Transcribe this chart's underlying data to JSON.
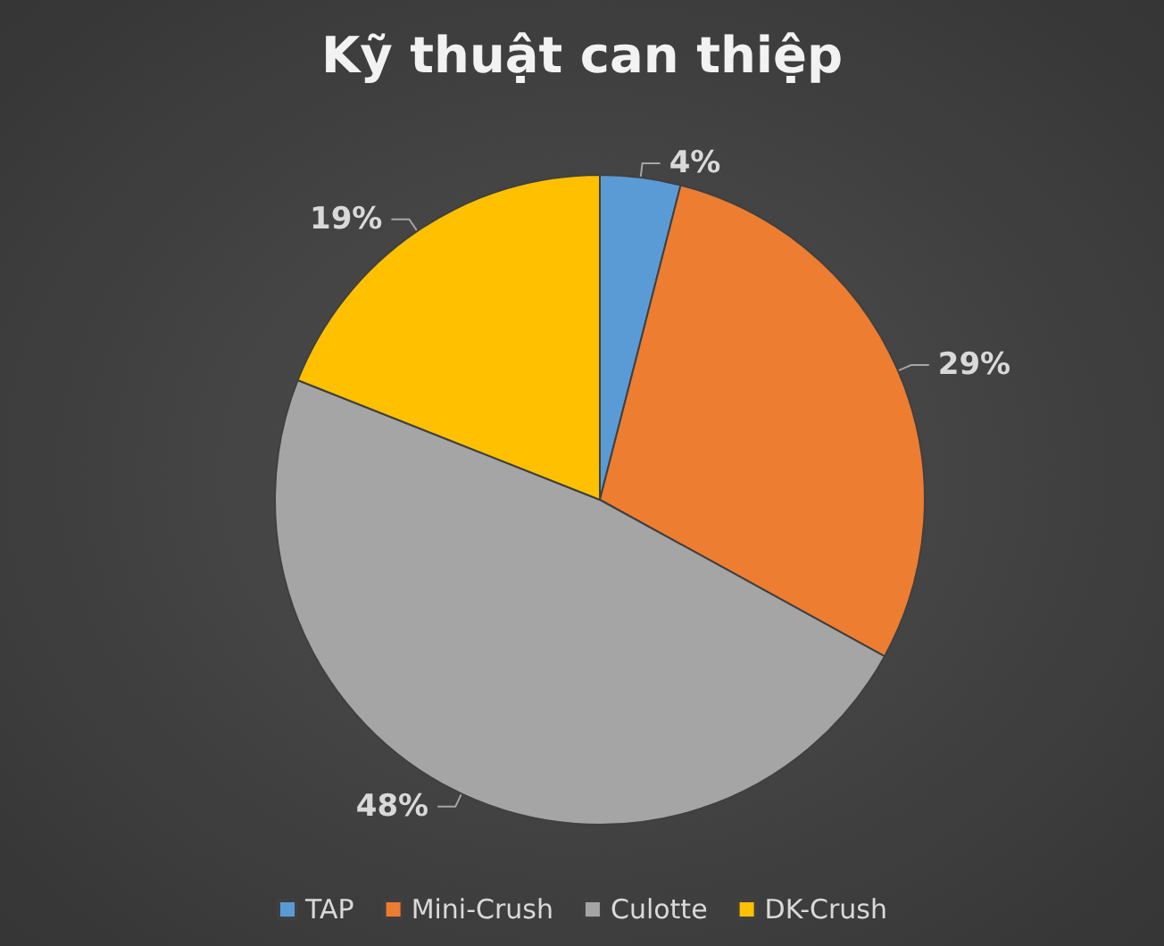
{
  "chart_data": {
    "type": "pie",
    "title": "Kỹ thuật can thiệp",
    "categories": [
      "TAP",
      "Mini-Crush",
      "Culotte",
      "DK-Crush"
    ],
    "values": [
      4,
      29,
      48,
      19
    ],
    "value_labels": [
      "4%",
      "29%",
      "48%",
      "19%"
    ],
    "colors": [
      "#5b9bd5",
      "#ed7d31",
      "#a5a5a5",
      "#ffc000"
    ],
    "legend": "bottom"
  }
}
